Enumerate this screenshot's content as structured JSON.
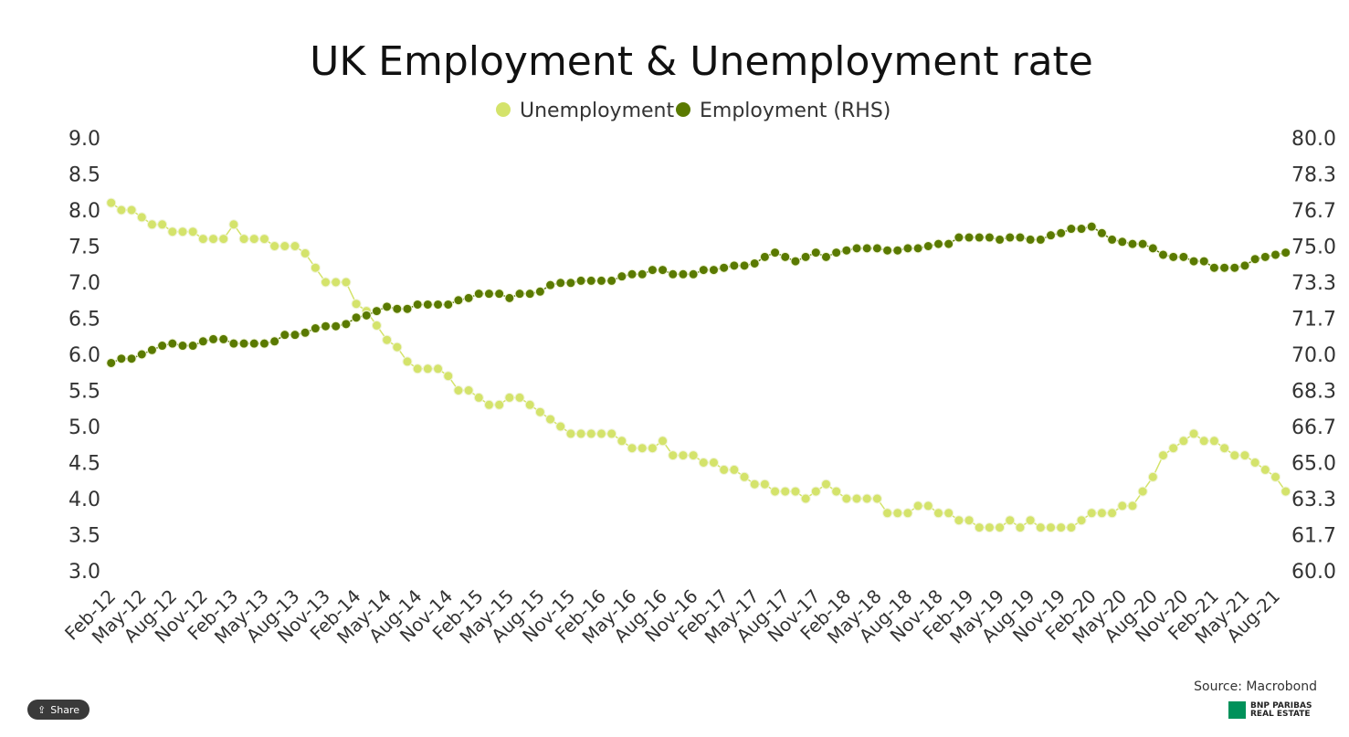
{
  "chart_data": {
    "type": "line",
    "title": "UK Employment & Unemployment rate",
    "source": "Source: Macrobond",
    "legend_position": "top-center",
    "y_left": {
      "min": 3.0,
      "max": 9.0,
      "ticks": [
        "3.0",
        "3.5",
        "4.0",
        "4.5",
        "5.0",
        "5.5",
        "6.0",
        "6.5",
        "7.0",
        "7.5",
        "8.0",
        "8.5",
        "9.0"
      ]
    },
    "y_right": {
      "min": 60.0,
      "max": 80.0,
      "ticks": [
        "60.0",
        "61.7",
        "63.3",
        "65.0",
        "66.7",
        "68.3",
        "70.0",
        "71.7",
        "73.3",
        "75.0",
        "76.7",
        "78.3",
        "80.0"
      ]
    },
    "x_tick_labels": [
      "Feb-12",
      "May-12",
      "Aug-12",
      "Nov-12",
      "Feb-13",
      "May-13",
      "Aug-13",
      "Nov-13",
      "Feb-14",
      "May-14",
      "Aug-14",
      "Nov-14",
      "Feb-15",
      "May-15",
      "Aug-15",
      "Nov-15",
      "Feb-16",
      "May-16",
      "Aug-16",
      "Nov-16",
      "Feb-17",
      "May-17",
      "Aug-17",
      "Nov-17",
      "Feb-18",
      "May-18",
      "Aug-18",
      "Nov-18",
      "Feb-19",
      "May-19",
      "Aug-19",
      "Nov-19",
      "Feb-20",
      "May-20",
      "Aug-20",
      "Nov-20",
      "Feb-21",
      "May-21",
      "Aug-21"
    ],
    "series": [
      {
        "name": "Unemployment",
        "axis": "left",
        "color": "#d4e36b",
        "values": [
          8.1,
          8.0,
          8.0,
          7.9,
          7.8,
          7.8,
          7.7,
          7.7,
          7.7,
          7.6,
          7.6,
          7.6,
          7.8,
          7.6,
          7.6,
          7.6,
          7.5,
          7.5,
          7.5,
          7.4,
          7.2,
          7.0,
          7.0,
          7.0,
          6.7,
          6.6,
          6.4,
          6.2,
          6.1,
          5.9,
          5.8,
          5.8,
          5.8,
          5.7,
          5.5,
          5.5,
          5.4,
          5.3,
          5.3,
          5.4,
          5.4,
          5.3,
          5.2,
          5.1,
          5.0,
          4.9,
          4.9,
          4.9,
          4.9,
          4.9,
          4.8,
          4.7,
          4.7,
          4.7,
          4.8,
          4.6,
          4.6,
          4.6,
          4.5,
          4.5,
          4.4,
          4.4,
          4.3,
          4.2,
          4.2,
          4.1,
          4.1,
          4.1,
          4.0,
          4.1,
          4.2,
          4.1,
          4.0,
          4.0,
          4.0,
          4.0,
          3.8,
          3.8,
          3.8,
          3.9,
          3.9,
          3.8,
          3.8,
          3.7,
          3.7,
          3.6,
          3.6,
          3.6,
          3.7,
          3.6,
          3.7,
          3.6,
          3.6,
          3.6,
          3.6,
          3.7,
          3.8,
          3.8,
          3.8,
          3.9,
          3.9,
          4.1,
          4.3,
          4.6,
          4.7,
          4.8,
          4.9,
          4.8,
          4.8,
          4.7,
          4.6,
          4.6,
          4.5,
          4.4,
          4.3,
          4.1
        ]
      },
      {
        "name": "Employment (RHS)",
        "axis": "right",
        "color": "#5a7a00",
        "values": [
          69.6,
          69.8,
          69.8,
          70.0,
          70.2,
          70.4,
          70.5,
          70.4,
          70.4,
          70.6,
          70.7,
          70.7,
          70.5,
          70.5,
          70.5,
          70.5,
          70.6,
          70.9,
          70.9,
          71.0,
          71.2,
          71.3,
          71.3,
          71.4,
          71.7,
          71.8,
          72.0,
          72.2,
          72.1,
          72.1,
          72.3,
          72.3,
          72.3,
          72.3,
          72.5,
          72.6,
          72.8,
          72.8,
          72.8,
          72.6,
          72.8,
          72.8,
          72.9,
          73.2,
          73.3,
          73.3,
          73.4,
          73.4,
          73.4,
          73.4,
          73.6,
          73.7,
          73.7,
          73.9,
          73.9,
          73.7,
          73.7,
          73.7,
          73.9,
          73.9,
          74.0,
          74.1,
          74.1,
          74.2,
          74.5,
          74.7,
          74.5,
          74.3,
          74.5,
          74.7,
          74.5,
          74.7,
          74.8,
          74.9,
          74.9,
          74.9,
          74.8,
          74.8,
          74.9,
          74.9,
          75.0,
          75.1,
          75.1,
          75.4,
          75.4,
          75.4,
          75.4,
          75.3,
          75.4,
          75.4,
          75.3,
          75.3,
          75.5,
          75.6,
          75.8,
          75.8,
          75.9,
          75.6,
          75.3,
          75.2,
          75.1,
          75.1,
          74.9,
          74.6,
          74.5,
          74.5,
          74.3,
          74.3,
          74.0,
          74.0,
          74.0,
          74.1,
          74.4,
          74.5,
          74.6,
          74.7
        ]
      }
    ]
  },
  "ui": {
    "share_label": "Share",
    "logo_line1": "BNP PARIBAS",
    "logo_line2": "REAL ESTATE"
  }
}
